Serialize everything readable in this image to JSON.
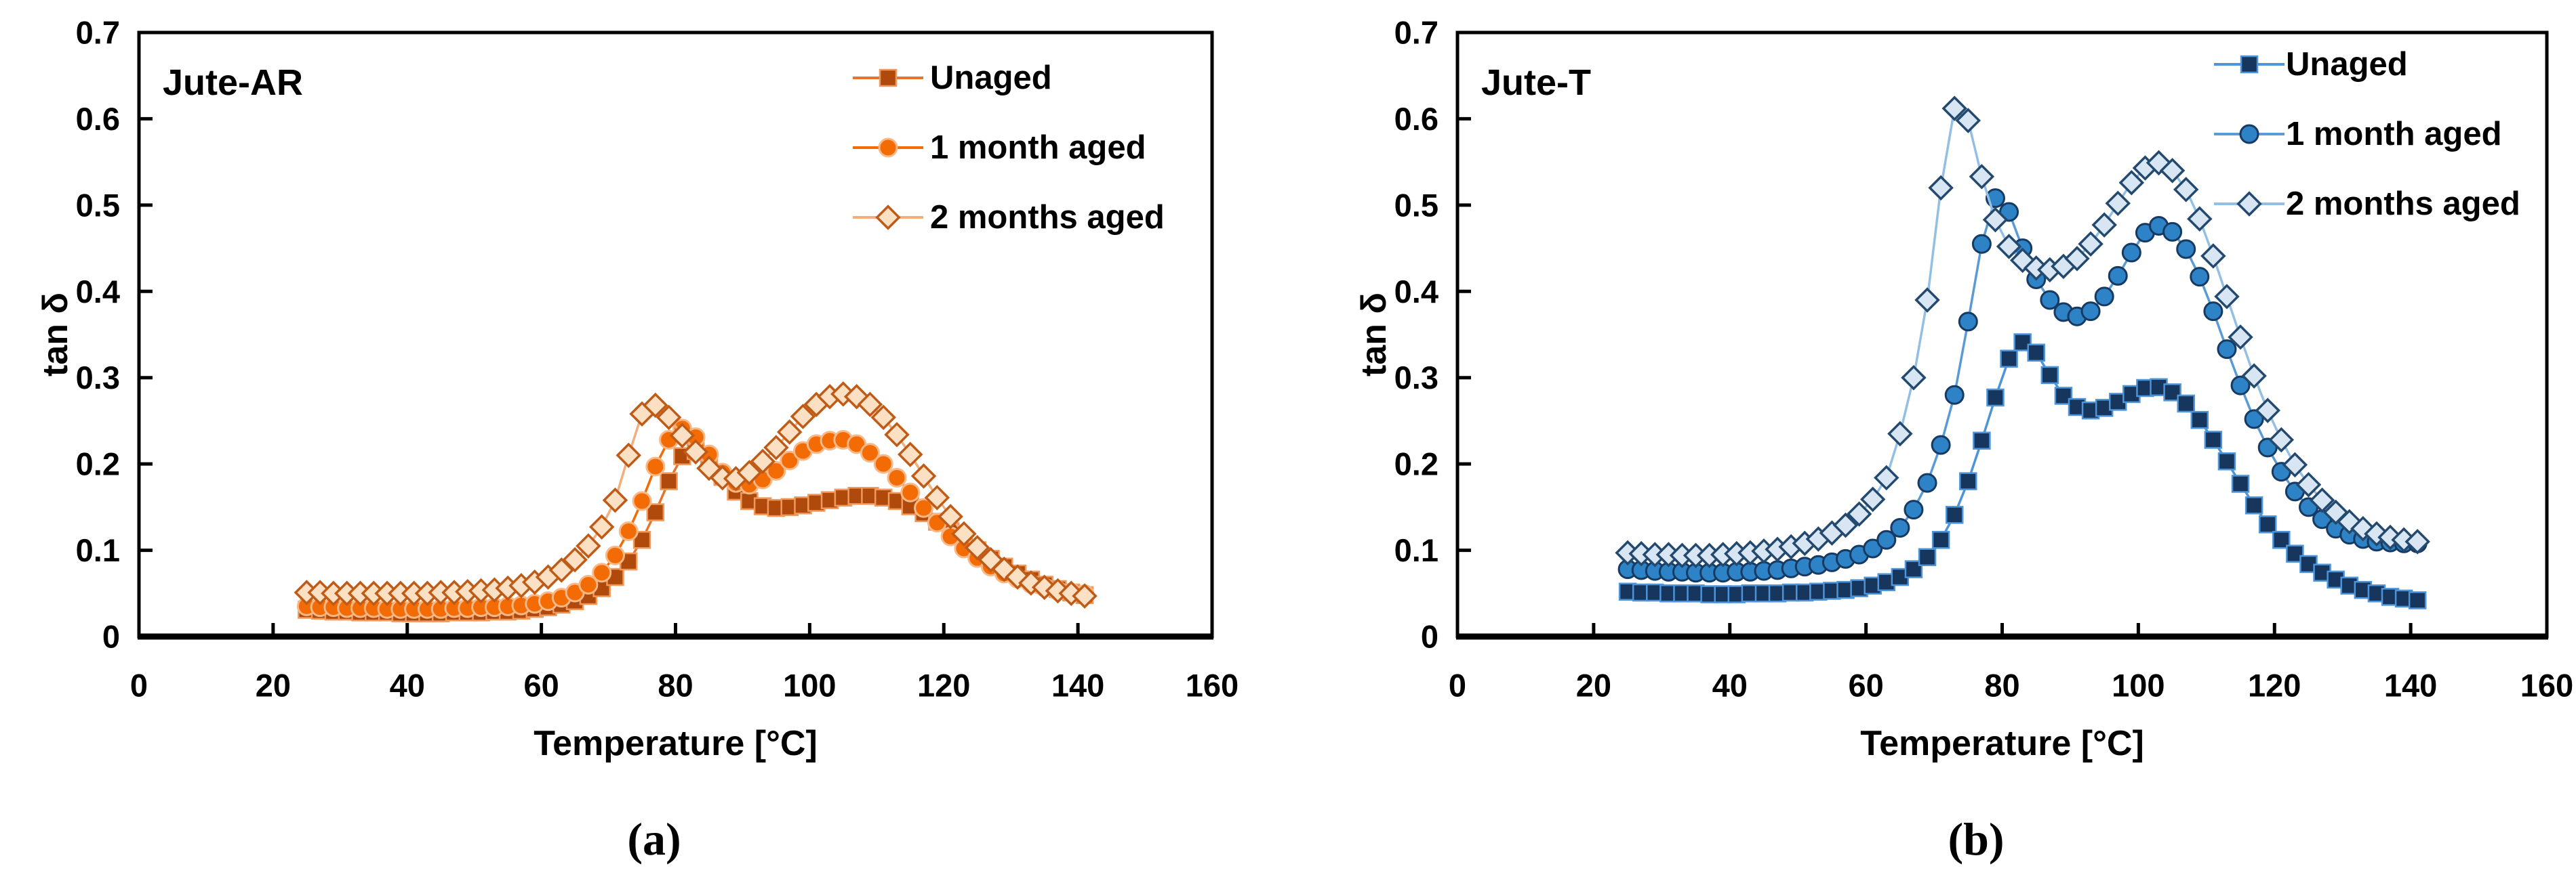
{
  "chart_data": [
    {
      "type": "line",
      "panel_label": "(a)",
      "title": "Jute-AR",
      "xlabel": "Temperature [°C]",
      "ylabel": "tan δ",
      "xlim": [
        0,
        160
      ],
      "ylim": [
        0,
        0.7
      ],
      "xticks": [
        0,
        20,
        40,
        60,
        80,
        100,
        120,
        140,
        160
      ],
      "ytick_labels": [
        "0",
        "0.1",
        "0.2",
        "0.3",
        "0.4",
        "0.5",
        "0.6",
        "0.7"
      ],
      "grid": false,
      "legend_position": "top-right-inside",
      "x": [
        25,
        27,
        29,
        31,
        33,
        35,
        37,
        39,
        41,
        43,
        45,
        47,
        49,
        51,
        53,
        55,
        57,
        59,
        61,
        63,
        65,
        67,
        69,
        71,
        73,
        75,
        77,
        79,
        81,
        83,
        85,
        87,
        89,
        91,
        93,
        95,
        97,
        99,
        101,
        103,
        105,
        107,
        109,
        111,
        113,
        115,
        117,
        119,
        121,
        123,
        125,
        127,
        129,
        131,
        133,
        135,
        137,
        139,
        141
      ],
      "series": [
        {
          "name": "Unaged",
          "marker": "square",
          "marker_fill": "#b04a0c",
          "marker_stroke": "#f0995c",
          "line_color": "#e4762c",
          "values": [
            0.031,
            0.03,
            0.029,
            0.029,
            0.028,
            0.028,
            0.028,
            0.027,
            0.027,
            0.027,
            0.027,
            0.028,
            0.028,
            0.028,
            0.029,
            0.029,
            0.03,
            0.032,
            0.034,
            0.037,
            0.041,
            0.047,
            0.056,
            0.069,
            0.087,
            0.112,
            0.144,
            0.18,
            0.209,
            0.215,
            0.204,
            0.185,
            0.168,
            0.157,
            0.151,
            0.149,
            0.15,
            0.152,
            0.155,
            0.158,
            0.161,
            0.163,
            0.163,
            0.161,
            0.157,
            0.151,
            0.143,
            0.133,
            0.122,
            0.111,
            0.1,
            0.09,
            0.081,
            0.073,
            0.066,
            0.06,
            0.055,
            0.051,
            0.048
          ]
        },
        {
          "name": "1 month aged",
          "marker": "circle",
          "marker_fill": "#f26b05",
          "marker_stroke": "#f8b887",
          "line_color": "#f26b05",
          "values": [
            0.035,
            0.034,
            0.034,
            0.033,
            0.033,
            0.033,
            0.032,
            0.032,
            0.032,
            0.032,
            0.032,
            0.033,
            0.033,
            0.034,
            0.034,
            0.035,
            0.036,
            0.038,
            0.041,
            0.045,
            0.051,
            0.06,
            0.074,
            0.094,
            0.122,
            0.157,
            0.197,
            0.228,
            0.241,
            0.231,
            0.211,
            0.19,
            0.178,
            0.176,
            0.182,
            0.192,
            0.204,
            0.215,
            0.223,
            0.227,
            0.228,
            0.223,
            0.213,
            0.2,
            0.184,
            0.167,
            0.149,
            0.132,
            0.116,
            0.102,
            0.091,
            0.081,
            0.073,
            0.067,
            0.061,
            0.057,
            0.053,
            0.051,
            0.049
          ]
        },
        {
          "name": "2 months aged",
          "marker": "diamond",
          "marker_fill": "#fbe0c3",
          "marker_stroke": "#bf5b16",
          "line_color": "#f2af7d",
          "values": [
            0.051,
            0.051,
            0.05,
            0.05,
            0.05,
            0.05,
            0.05,
            0.05,
            0.05,
            0.05,
            0.051,
            0.051,
            0.052,
            0.053,
            0.054,
            0.056,
            0.059,
            0.063,
            0.069,
            0.077,
            0.089,
            0.105,
            0.127,
            0.158,
            0.21,
            0.258,
            0.268,
            0.254,
            0.233,
            0.214,
            0.195,
            0.184,
            0.183,
            0.19,
            0.203,
            0.219,
            0.237,
            0.255,
            0.269,
            0.278,
            0.281,
            0.278,
            0.269,
            0.254,
            0.234,
            0.211,
            0.186,
            0.161,
            0.139,
            0.119,
            0.103,
            0.089,
            0.078,
            0.069,
            0.062,
            0.057,
            0.053,
            0.05,
            0.047
          ]
        }
      ]
    },
    {
      "type": "line",
      "panel_label": "(b)",
      "title": "Jute-T",
      "xlabel": "Temperature [°C]",
      "ylabel": "tan δ",
      "xlim": [
        0,
        160
      ],
      "ylim": [
        0,
        0.7
      ],
      "xticks": [
        0,
        20,
        40,
        60,
        80,
        100,
        120,
        140,
        160
      ],
      "ytick_labels": [
        "0",
        "0.1",
        "0.2",
        "0.3",
        "0.4",
        "0.5",
        "0.6",
        "0.7"
      ],
      "grid": false,
      "legend_position": "top-right-inside",
      "x": [
        25,
        27,
        29,
        31,
        33,
        35,
        37,
        39,
        41,
        43,
        45,
        47,
        49,
        51,
        53,
        55,
        57,
        59,
        61,
        63,
        65,
        67,
        69,
        71,
        73,
        75,
        77,
        79,
        81,
        83,
        85,
        87,
        89,
        91,
        93,
        95,
        97,
        99,
        101,
        103,
        105,
        107,
        109,
        111,
        113,
        115,
        117,
        119,
        121,
        123,
        125,
        127,
        129,
        131,
        133,
        135,
        137,
        139,
        141
      ],
      "series": [
        {
          "name": "Unaged",
          "marker": "square",
          "marker_fill": "#16365d",
          "marker_stroke": "#4d94d8",
          "line_color": "#4d94d8",
          "values": [
            0.052,
            0.051,
            0.051,
            0.05,
            0.05,
            0.05,
            0.049,
            0.049,
            0.049,
            0.05,
            0.05,
            0.05,
            0.051,
            0.051,
            0.052,
            0.053,
            0.054,
            0.056,
            0.059,
            0.063,
            0.069,
            0.078,
            0.092,
            0.112,
            0.141,
            0.18,
            0.227,
            0.277,
            0.322,
            0.341,
            0.329,
            0.303,
            0.279,
            0.266,
            0.262,
            0.265,
            0.272,
            0.281,
            0.288,
            0.289,
            0.283,
            0.27,
            0.251,
            0.228,
            0.203,
            0.177,
            0.152,
            0.13,
            0.112,
            0.096,
            0.084,
            0.074,
            0.066,
            0.059,
            0.054,
            0.05,
            0.046,
            0.044,
            0.042
          ]
        },
        {
          "name": "1 month aged",
          "marker": "circle",
          "marker_fill": "#2d83c5",
          "marker_stroke": "#173a63",
          "line_color": "#5b9bd5",
          "values": [
            0.078,
            0.077,
            0.076,
            0.075,
            0.075,
            0.074,
            0.074,
            0.074,
            0.075,
            0.075,
            0.076,
            0.077,
            0.079,
            0.081,
            0.083,
            0.086,
            0.09,
            0.095,
            0.102,
            0.112,
            0.126,
            0.147,
            0.178,
            0.222,
            0.28,
            0.365,
            0.455,
            0.508,
            0.492,
            0.45,
            0.414,
            0.39,
            0.376,
            0.371,
            0.377,
            0.394,
            0.418,
            0.445,
            0.468,
            0.476,
            0.469,
            0.449,
            0.417,
            0.377,
            0.333,
            0.291,
            0.252,
            0.219,
            0.191,
            0.168,
            0.15,
            0.136,
            0.125,
            0.118,
            0.113,
            0.11,
            0.109,
            0.108,
            0.108
          ]
        },
        {
          "name": "2 months aged",
          "marker": "diamond",
          "marker_fill": "#d8e6f3",
          "marker_stroke": "#24496f",
          "line_color": "#94bfe5",
          "values": [
            0.097,
            0.096,
            0.095,
            0.095,
            0.094,
            0.094,
            0.094,
            0.095,
            0.096,
            0.097,
            0.099,
            0.101,
            0.104,
            0.108,
            0.113,
            0.12,
            0.129,
            0.142,
            0.159,
            0.184,
            0.235,
            0.3,
            0.39,
            0.52,
            0.612,
            0.598,
            0.533,
            0.483,
            0.452,
            0.436,
            0.427,
            0.425,
            0.429,
            0.438,
            0.455,
            0.477,
            0.502,
            0.526,
            0.543,
            0.549,
            0.54,
            0.518,
            0.484,
            0.441,
            0.394,
            0.347,
            0.302,
            0.262,
            0.228,
            0.199,
            0.176,
            0.158,
            0.144,
            0.133,
            0.125,
            0.119,
            0.115,
            0.112,
            0.11
          ]
        }
      ]
    }
  ]
}
